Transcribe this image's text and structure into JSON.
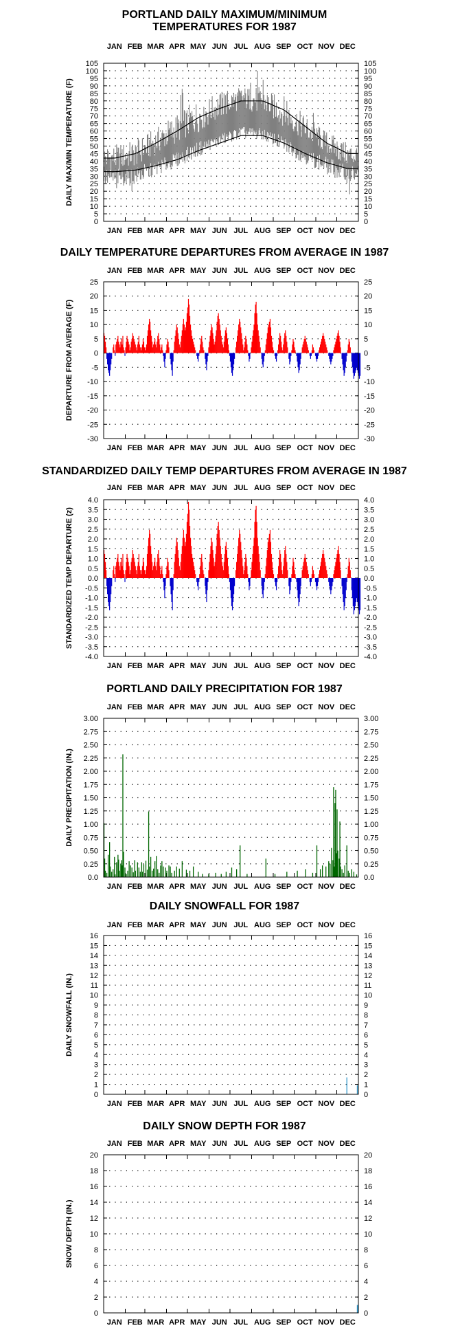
{
  "months": [
    "JAN",
    "FEB",
    "MAR",
    "APR",
    "MAY",
    "JUN",
    "JUL",
    "AUG",
    "SEP",
    "OCT",
    "NOV",
    "DEC"
  ],
  "chart_data": [
    {
      "id": "temp",
      "type": "bar",
      "title_lines": [
        "PORTLAND DAILY MAXIMUM/MINIMUM",
        "TEMPERATURES FOR 1987"
      ],
      "ylabel": "DAILY MAX/MIN TEMPERATURE (F)",
      "ylim": [
        0,
        105
      ],
      "yticks": [
        0,
        5,
        10,
        15,
        20,
        25,
        30,
        35,
        40,
        45,
        50,
        55,
        60,
        65,
        70,
        75,
        80,
        85,
        90,
        95,
        100,
        105
      ],
      "ytick_labels": [
        "0",
        "5",
        "10",
        "15",
        "20",
        "25",
        "30",
        "35",
        "40",
        "45",
        "50",
        "55",
        "60",
        "65",
        "70",
        "75",
        "80",
        "85",
        "90",
        "95",
        "100",
        "105"
      ],
      "grid": true,
      "colors": {
        "range": "#808080",
        "normal": "#000000"
      },
      "series": [
        {
          "key": "max",
          "month_mid": [
            42,
            45,
            53,
            62,
            70,
            77,
            82,
            80,
            72,
            62,
            52,
            44
          ],
          "swing": [
            9,
            9,
            9,
            10,
            11,
            9,
            8,
            9,
            9,
            9,
            8,
            8
          ],
          "spikes": [
            [
              110,
              84
            ],
            [
              112,
              88
            ],
            [
              113,
              85
            ],
            [
              143,
              76
            ],
            [
              172,
              85
            ],
            [
              210,
              92
            ],
            [
              220,
              100
            ],
            [
              228,
              94
            ],
            [
              258,
              83
            ],
            [
              262,
              80
            ],
            [
              300,
              72
            ],
            [
              340,
              52
            ]
          ]
        },
        {
          "key": "min",
          "month_mid": [
            29,
            30,
            35,
            41,
            48,
            54,
            59,
            58,
            51,
            43,
            37,
            31
          ],
          "swing": [
            6,
            6,
            5,
            5,
            5,
            4,
            4,
            4,
            5,
            5,
            6,
            6
          ],
          "spikes": [
            [
              18,
              22
            ],
            [
              40,
              20
            ],
            [
              352,
              18
            ]
          ]
        },
        {
          "key": "normal_high",
          "months": [
            42,
            45,
            52,
            60,
            69,
            75,
            80,
            80,
            74,
            63,
            52,
            45
          ]
        },
        {
          "key": "normal_low",
          "months": [
            33,
            34,
            37,
            41,
            47,
            52,
            57,
            57,
            52,
            45,
            39,
            35
          ]
        }
      ]
    },
    {
      "id": "dep",
      "type": "bar",
      "title_lines": [
        "DAILY TEMPERATURE DEPARTURES FROM AVERAGE IN 1987"
      ],
      "ylabel": "DEPARTURE FROM AVERAGE (F)",
      "ylim": [
        -30,
        25
      ],
      "yticks": [
        -30,
        -25,
        -20,
        -15,
        -10,
        -5,
        0,
        5,
        10,
        15,
        20,
        25
      ],
      "ytick_labels": [
        "-30",
        "-25",
        "-20",
        "-15",
        "-10",
        "-5",
        "0",
        "5",
        "10",
        "15",
        "20",
        "25"
      ],
      "grid": true,
      "colors": {
        "pos": "#ff0000",
        "neg": "#0000cc"
      },
      "values": [
        7,
        6,
        4,
        2,
        -2,
        -4,
        -6,
        -7,
        -8,
        -6,
        -4,
        -2,
        0,
        2,
        3,
        1,
        -1,
        3,
        4,
        5,
        6,
        4,
        3,
        2,
        4,
        5,
        3,
        6,
        2,
        1,
        -1,
        2,
        4,
        6,
        5,
        4,
        3,
        1,
        2,
        4,
        5,
        7,
        6,
        5,
        4,
        3,
        2,
        1,
        3,
        4,
        6,
        3,
        2,
        1,
        2,
        3,
        5,
        4,
        2,
        1,
        2,
        3,
        6,
        8,
        10,
        12,
        11,
        8,
        6,
        4,
        2,
        3,
        4,
        5,
        3,
        2,
        4,
        6,
        7,
        5,
        3,
        1,
        2,
        3,
        1,
        -1,
        -3,
        -5,
        -2,
        1,
        3,
        5,
        4,
        2,
        0,
        -2,
        -4,
        -6,
        -8,
        -3,
        1,
        4,
        6,
        8,
        10,
        9,
        7,
        5,
        3,
        2,
        4,
        6,
        8,
        10,
        12,
        10,
        8,
        9,
        11,
        14,
        16,
        19,
        17,
        13,
        10,
        8,
        6,
        5,
        4,
        3,
        2,
        1,
        0,
        -1,
        -2,
        -3,
        -1,
        1,
        3,
        5,
        6,
        4,
        2,
        1,
        0,
        -2,
        -4,
        -6,
        -3,
        -1,
        2,
        4,
        6,
        8,
        10,
        9,
        7,
        5,
        3,
        4,
        6,
        8,
        11,
        13,
        14,
        12,
        10,
        8,
        6,
        4,
        3,
        2,
        4,
        6,
        8,
        9,
        7,
        5,
        3,
        1,
        -1,
        -3,
        -5,
        -7,
        -8,
        -6,
        -4,
        -2,
        0,
        2,
        4,
        6,
        8,
        10,
        12,
        11,
        9,
        7,
        5,
        3,
        1,
        2,
        4,
        6,
        5,
        3,
        1,
        -1,
        -3,
        -2,
        0,
        2,
        4,
        6,
        8,
        10,
        14,
        17,
        18,
        14,
        10,
        8,
        6,
        4,
        2,
        0,
        -2,
        -4,
        -5,
        -3,
        -1,
        1,
        3,
        5,
        7,
        9,
        10,
        11,
        12,
        9,
        6,
        4,
        2,
        1,
        0,
        -1,
        -2,
        -3,
        -1,
        1,
        3,
        5,
        7,
        6,
        4,
        2,
        1,
        3,
        5,
        7,
        8,
        6,
        4,
        2,
        0,
        -2,
        -4,
        -3,
        -1,
        1,
        3,
        5,
        4,
        2,
        1,
        0,
        -1,
        -3,
        -5,
        -7,
        -6,
        -4,
        -2,
        0,
        2,
        3,
        4,
        5,
        6,
        5,
        4,
        3,
        2,
        1,
        0,
        -1,
        -2,
        -1,
        1,
        3,
        2,
        1,
        0,
        -1,
        -2,
        -3,
        -2,
        -1,
        1,
        2,
        3,
        4,
        5,
        6,
        7,
        6,
        5,
        4,
        3,
        2,
        1,
        0,
        -1,
        -2,
        -3,
        -4,
        -3,
        -2,
        -1,
        1,
        2,
        3,
        4,
        5,
        6,
        7,
        8,
        6,
        4,
        2,
        0,
        -2,
        -4,
        -6,
        -8,
        -7,
        -5,
        -3,
        -1,
        1,
        3,
        5,
        4,
        2,
        0,
        -3,
        -5,
        -7,
        -9,
        -8,
        -7,
        -6,
        -5,
        -6,
        -7,
        -8,
        -9,
        -8
      ]
    },
    {
      "id": "std",
      "type": "bar",
      "title_lines": [
        "STANDARDIZED DAILY TEMP DEPARTURES FROM AVERAGE IN 1987"
      ],
      "ylabel": "STANDARDIZED TEMP DEPARTURE (z)",
      "ylim": [
        -4,
        4
      ],
      "yticks": [
        -4,
        -3.5,
        -3,
        -2.5,
        -2,
        -1.5,
        -1,
        -0.5,
        0,
        0.5,
        1,
        1.5,
        2,
        2.5,
        3,
        3.5,
        4
      ],
      "ytick_labels": [
        "-4.0",
        "-3.5",
        "-3.0",
        "-2.5",
        "-2.0",
        "-1.5",
        "-1.0",
        "-0.5",
        "0.0",
        "0.5",
        "1.0",
        "1.5",
        "2.0",
        "2.5",
        "3.0",
        "3.5",
        "4.0"
      ],
      "grid": true,
      "colors": {
        "pos": "#ff0000",
        "neg": "#0000cc"
      },
      "derived_from": "dep",
      "scale": 0.205
    },
    {
      "id": "precip",
      "type": "bar",
      "title_lines": [
        "PORTLAND DAILY PRECIPITATION FOR 1987"
      ],
      "ylabel": "DAILY PRECIPITATION (IN.)",
      "ylim": [
        0,
        3
      ],
      "yticks": [
        0,
        0.25,
        0.5,
        0.75,
        1,
        1.25,
        1.5,
        1.75,
        2,
        2.25,
        2.5,
        2.75,
        3
      ],
      "ytick_labels": [
        "0.0",
        "0.25",
        "0.50",
        "0.75",
        "1.00",
        "1.25",
        "1.50",
        "1.75",
        "2.00",
        "2.25",
        "2.50",
        "2.75",
        "3.00"
      ],
      "grid": true,
      "colors": {
        "bar": "#006600"
      },
      "points": [
        [
          0,
          1.02
        ],
        [
          1,
          0.35
        ],
        [
          2,
          0.12
        ],
        [
          4,
          0.08
        ],
        [
          6,
          0.42
        ],
        [
          8,
          0.66
        ],
        [
          9,
          0.2
        ],
        [
          11,
          0.1
        ],
        [
          13,
          0.15
        ],
        [
          15,
          0.38
        ],
        [
          16,
          0.05
        ],
        [
          18,
          0.28
        ],
        [
          20,
          0.42
        ],
        [
          21,
          0.33
        ],
        [
          22,
          0.12
        ],
        [
          24,
          0.25
        ],
        [
          25,
          0.32
        ],
        [
          26,
          0.22
        ],
        [
          27,
          2.32
        ],
        [
          28,
          0.48
        ],
        [
          30,
          0.18
        ],
        [
          32,
          0.06
        ],
        [
          34,
          0.12
        ],
        [
          36,
          0.3
        ],
        [
          38,
          0.22
        ],
        [
          40,
          0.18
        ],
        [
          42,
          0.09
        ],
        [
          44,
          0.32
        ],
        [
          45,
          0.12
        ],
        [
          48,
          0.28
        ],
        [
          50,
          0.18
        ],
        [
          52,
          0.1
        ],
        [
          54,
          0.28
        ],
        [
          55,
          0.1
        ],
        [
          57,
          0.24
        ],
        [
          60,
          0.31
        ],
        [
          62,
          0.14
        ],
        [
          64,
          1.24
        ],
        [
          65,
          0.2
        ],
        [
          67,
          0.38
        ],
        [
          69,
          0.12
        ],
        [
          71,
          0.16
        ],
        [
          73,
          0.3
        ],
        [
          75,
          0.4
        ],
        [
          77,
          0.15
        ],
        [
          79,
          0.08
        ],
        [
          81,
          0.22
        ],
        [
          83,
          0.3
        ],
        [
          85,
          0.2
        ],
        [
          88,
          0.18
        ],
        [
          90,
          0.12
        ],
        [
          93,
          0.22
        ],
        [
          95,
          0.2
        ],
        [
          97,
          0.08
        ],
        [
          101,
          0.12
        ],
        [
          104,
          0.2
        ],
        [
          108,
          0.16
        ],
        [
          112,
          0.3
        ],
        [
          118,
          0.14
        ],
        [
          123,
          0.12
        ],
        [
          128,
          0.2
        ],
        [
          135,
          0.1
        ],
        [
          141,
          0.06
        ],
        [
          150,
          0.06
        ],
        [
          160,
          0.08
        ],
        [
          168,
          0.06
        ],
        [
          175,
          0.1
        ],
        [
          183,
          0.18
        ],
        [
          190,
          0.15
        ],
        [
          195,
          0.6
        ],
        [
          205,
          0.06
        ],
        [
          232,
          0.35
        ],
        [
          245,
          0.06
        ],
        [
          262,
          0.1
        ],
        [
          277,
          0.12
        ],
        [
          289,
          0.15
        ],
        [
          299,
          0.08
        ],
        [
          305,
          0.6
        ],
        [
          310,
          0.15
        ],
        [
          313,
          0.22
        ],
        [
          318,
          0.2
        ],
        [
          322,
          0.3
        ],
        [
          324,
          0.25
        ],
        [
          326,
          0.55
        ],
        [
          328,
          0.32
        ],
        [
          329,
          1.7
        ],
        [
          330,
          0.2
        ],
        [
          331,
          1.4
        ],
        [
          332,
          1.65
        ],
        [
          333,
          0.45
        ],
        [
          334,
          1.28
        ],
        [
          335,
          0.5
        ],
        [
          337,
          0.35
        ],
        [
          338,
          1.05
        ],
        [
          339,
          0.2
        ],
        [
          341,
          0.15
        ],
        [
          343,
          0.08
        ],
        [
          345,
          0.22
        ],
        [
          348,
          0.6
        ],
        [
          350,
          0.12
        ],
        [
          352,
          0.08
        ],
        [
          355,
          0.15
        ],
        [
          358,
          0.1
        ],
        [
          362,
          0.05
        ]
      ]
    },
    {
      "id": "snow",
      "type": "bar",
      "title_lines": [
        "DAILY SNOWFALL FOR 1987"
      ],
      "ylabel": "DAILY SNOWFALL (IN.)",
      "ylim": [
        0,
        16
      ],
      "yticks": [
        0,
        1,
        2,
        3,
        4,
        5,
        6,
        7,
        8,
        9,
        10,
        11,
        12,
        13,
        14,
        15,
        16
      ],
      "ytick_labels": [
        "0",
        "1",
        "2",
        "3",
        "4",
        "5",
        "6",
        "7",
        "8",
        "9",
        "10",
        "11",
        "12",
        "13",
        "14",
        "15",
        "16"
      ],
      "grid": true,
      "colors": {
        "bar": "#3399cc"
      },
      "points": [
        [
          348,
          1.7
        ],
        [
          363,
          0.9
        ]
      ]
    },
    {
      "id": "depth",
      "type": "bar",
      "title_lines": [
        "DAILY SNOW DEPTH FOR 1987"
      ],
      "ylabel": "SNOW DEPTH (IN.)",
      "ylim": [
        0,
        20
      ],
      "yticks": [
        0,
        2,
        4,
        6,
        8,
        10,
        12,
        14,
        16,
        18,
        20
      ],
      "ytick_labels": [
        "0",
        "2",
        "4",
        "6",
        "8",
        "10",
        "12",
        "14",
        "16",
        "18",
        "20"
      ],
      "grid": true,
      "colors": {
        "bar": "#3399cc"
      },
      "points": [
        [
          363,
          1.0
        ],
        [
          364,
          1.0
        ]
      ]
    }
  ]
}
